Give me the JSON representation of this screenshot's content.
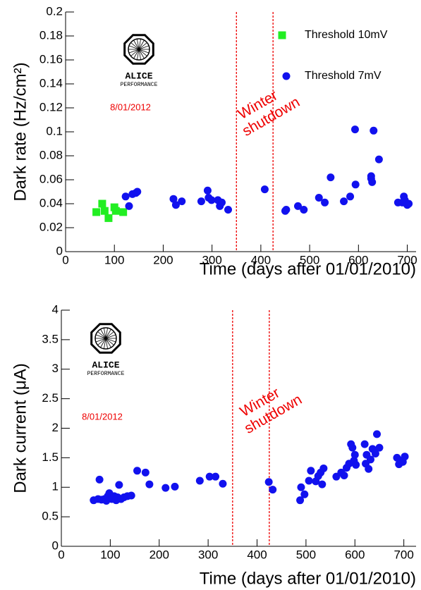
{
  "chart_data": [
    {
      "type": "scatter",
      "xlabel": "Time (days after 01/01/2010)",
      "ylabel": "Dark rate (Hz/cm²)",
      "xlim": [
        0,
        718
      ],
      "ylim": [
        0,
        0.2
      ],
      "xticks": [
        0,
        100,
        200,
        300,
        400,
        500,
        600,
        700
      ],
      "yticks": [
        0,
        0.02,
        0.04,
        0.06,
        0.08,
        0.1,
        0.12,
        0.14,
        0.16,
        0.18,
        0.2
      ],
      "legend": "upper right",
      "shutdown_lines": [
        350,
        425
      ],
      "annotation": [
        "Winter",
        "shutdown"
      ],
      "logo_text": [
        "ALICE",
        "PERFORMANCE"
      ],
      "date": "8/01/2012",
      "series": [
        {
          "name": "Threshold 10mV",
          "color": "#22ee22",
          "marker": "square",
          "x": [
            63,
            75,
            80,
            88,
            100,
            103,
            118
          ],
          "values": [
            0.033,
            0.04,
            0.034,
            0.028,
            0.037,
            0.034,
            0.033
          ]
        },
        {
          "name": "Threshold 7mV",
          "color": "#1111ee",
          "marker": "circle",
          "x": [
            123,
            130,
            137,
            144,
            147,
            221,
            226,
            238,
            278,
            291,
            293,
            299,
            312,
            316,
            320,
            333,
            408,
            450,
            452,
            476,
            488,
            519,
            531,
            543,
            570,
            583,
            593,
            594,
            626,
            626,
            628,
            631,
            642,
            681,
            690,
            693,
            695,
            700,
            703
          ],
          "values": [
            0.046,
            0.038,
            0.048,
            0.049,
            0.05,
            0.044,
            0.039,
            0.042,
            0.042,
            0.051,
            0.045,
            0.043,
            0.043,
            0.038,
            0.041,
            0.035,
            0.052,
            0.034,
            0.035,
            0.038,
            0.035,
            0.045,
            0.041,
            0.062,
            0.042,
            0.046,
            0.102,
            0.056,
            0.063,
            0.061,
            0.058,
            0.101,
            0.077,
            0.041,
            0.041,
            0.046,
            0.043,
            0.039,
            0.04
          ]
        }
      ]
    },
    {
      "type": "scatter",
      "xlabel": "Time (days after 01/01/2010)",
      "ylabel": "Dark current (μA)",
      "xlim": [
        0,
        725
      ],
      "ylim": [
        0,
        4
      ],
      "xticks": [
        0,
        100,
        200,
        300,
        400,
        500,
        600,
        700
      ],
      "yticks": [
        0,
        0.5,
        1,
        1.5,
        2,
        2.5,
        3,
        3.5,
        4
      ],
      "shutdown_lines": [
        350,
        425
      ],
      "annotation": [
        "Winter",
        "shutdown"
      ],
      "logo_text": [
        "ALICE",
        "PERFORMANCE"
      ],
      "date": "8/01/2012",
      "series": [
        {
          "color": "#1111ee",
          "marker": "circle",
          "x": [
            66,
            75,
            78,
            82,
            88,
            92,
            95,
            98,
            103,
            108,
            112,
            115,
            118,
            122,
            128,
            135,
            143,
            155,
            172,
            180,
            213,
            232,
            283,
            303,
            315,
            330,
            424,
            432,
            488,
            490,
            497,
            506,
            510,
            520,
            525,
            530,
            533,
            536,
            562,
            572,
            578,
            583,
            588,
            592,
            595,
            598,
            600,
            602,
            620,
            622,
            624,
            628,
            632,
            636,
            642,
            645,
            650,
            686,
            690,
            695,
            698,
            702
          ],
          "values": [
            0.78,
            0.8,
            1.13,
            0.79,
            0.8,
            0.77,
            0.85,
            0.9,
            0.8,
            0.85,
            0.78,
            0.83,
            1.04,
            0.8,
            0.83,
            0.85,
            0.86,
            1.28,
            1.25,
            1.05,
            0.99,
            1.01,
            1.11,
            1.18,
            1.18,
            1.06,
            1.09,
            0.96,
            0.78,
            1.0,
            0.88,
            1.11,
            1.28,
            1.1,
            1.19,
            1.25,
            1.05,
            1.32,
            1.18,
            1.25,
            1.2,
            1.33,
            1.4,
            1.73,
            1.67,
            1.45,
            1.55,
            1.38,
            1.73,
            1.4,
            1.55,
            1.31,
            1.47,
            1.65,
            1.57,
            1.9,
            1.67,
            1.5,
            1.39,
            1.45,
            1.43,
            1.52
          ]
        }
      ]
    }
  ]
}
